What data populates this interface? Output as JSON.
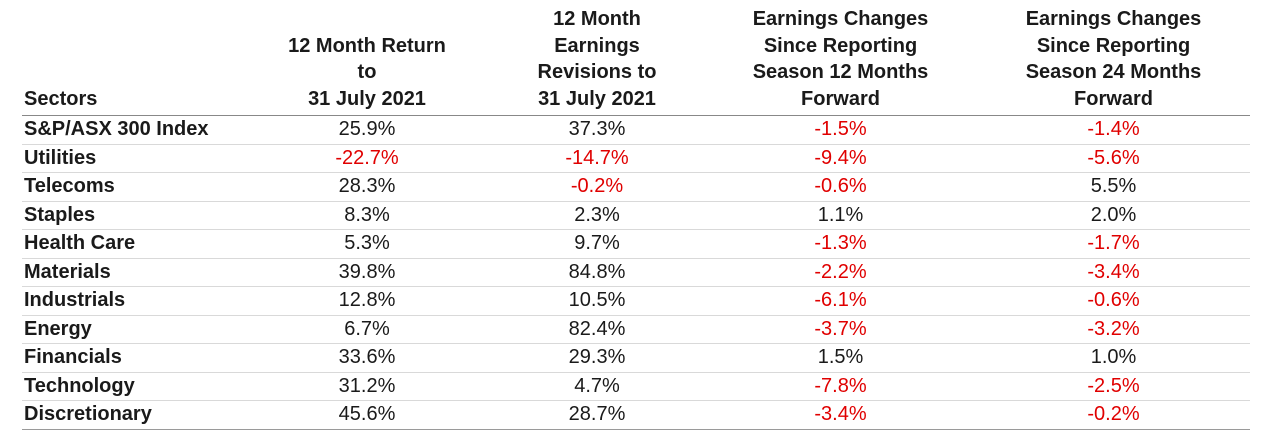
{
  "table": {
    "headers": [
      "Sectors",
      "12 Month Return to 31 July 2021",
      "12 Month Earnings Revisions to 31 July 2021",
      "Earnings Changes Since Reporting Season 12 Months Forward",
      "Earnings Changes Since Reporting Season 24 Months Forward"
    ],
    "negative_color": "#e00000",
    "rows": [
      [
        "S&P/ASX 300 Index",
        "25.9%",
        "37.3%",
        "-1.5%",
        "-1.4%"
      ],
      [
        "Utilities",
        "-22.7%",
        "-14.7%",
        "-9.4%",
        "-5.6%"
      ],
      [
        "Telecoms",
        "28.3%",
        "-0.2%",
        "-0.6%",
        "5.5%"
      ],
      [
        "Staples",
        "8.3%",
        "2.3%",
        "1.1%",
        "2.0%"
      ],
      [
        "Health Care",
        "5.3%",
        "9.7%",
        "-1.3%",
        "-1.7%"
      ],
      [
        "Materials",
        "39.8%",
        "84.8%",
        "-2.2%",
        "-3.4%"
      ],
      [
        "Industrials",
        "12.8%",
        "10.5%",
        "-6.1%",
        "-0.6%"
      ],
      [
        "Energy",
        "6.7%",
        "82.4%",
        "-3.7%",
        "-3.2%"
      ],
      [
        "Financials",
        "33.6%",
        "29.3%",
        "1.5%",
        "1.0%"
      ],
      [
        "Technology",
        "31.2%",
        "4.7%",
        "-7.8%",
        "-2.5%"
      ],
      [
        "Discretionary",
        "45.6%",
        "28.7%",
        "-3.4%",
        "-0.2%"
      ]
    ]
  }
}
